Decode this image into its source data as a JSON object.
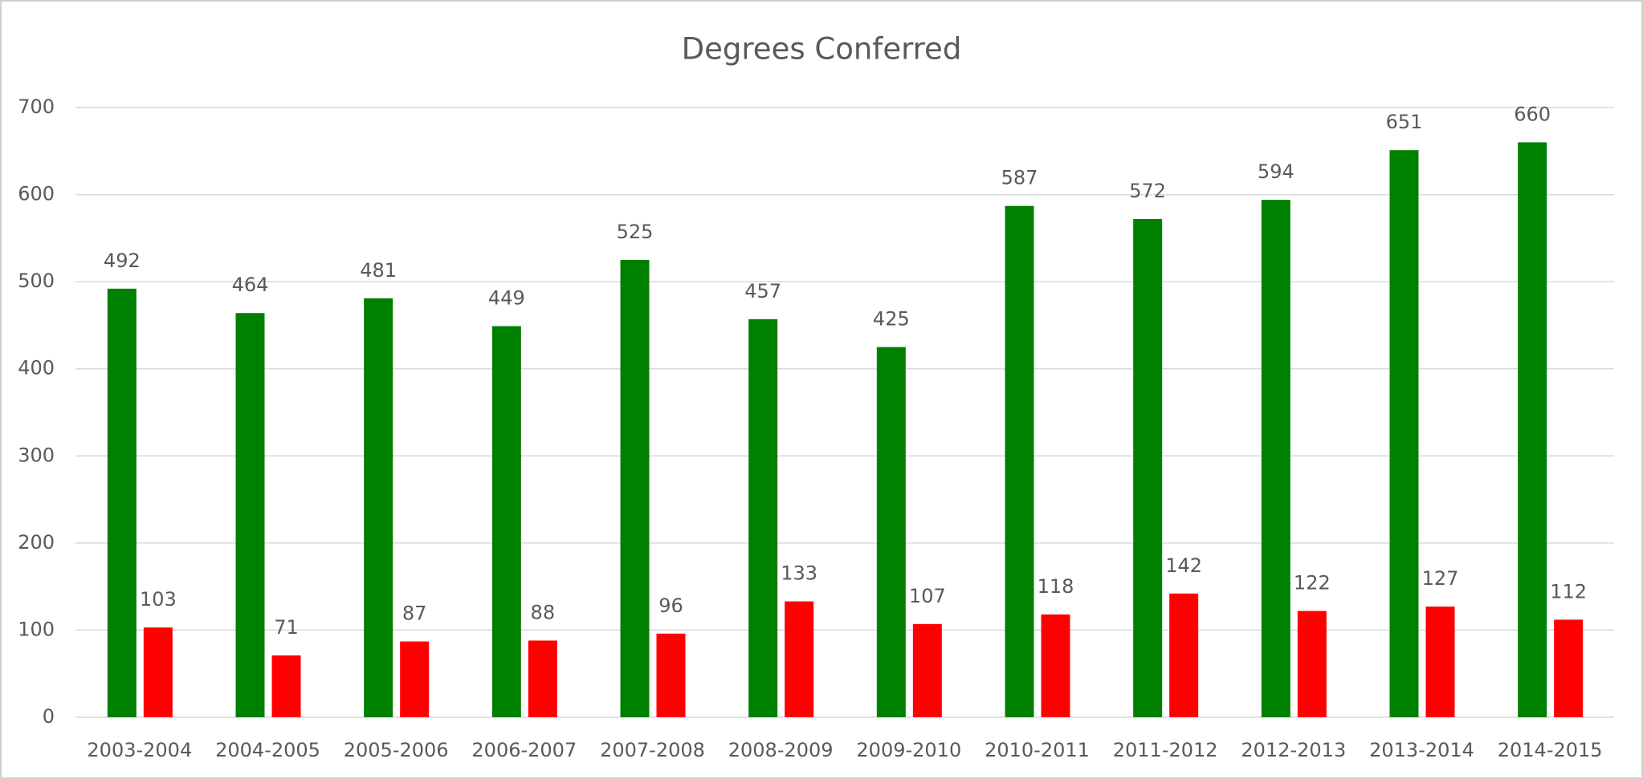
{
  "chart_data": {
    "type": "bar",
    "title": "Degrees Conferred",
    "categories": [
      "2003-2004",
      "2004-2005",
      "2005-2006",
      "2006-2007",
      "2007-2008",
      "2008-2009",
      "2009-2010",
      "2010-2011",
      "2011-2012",
      "2012-2013",
      "2013-2014",
      "2014-2015"
    ],
    "series": [
      {
        "color": "#008000",
        "values": [
          492,
          464,
          481,
          449,
          525,
          457,
          425,
          587,
          572,
          594,
          651,
          660
        ]
      },
      {
        "color": "#ff0000",
        "values": [
          103,
          71,
          87,
          88,
          96,
          133,
          107,
          118,
          142,
          122,
          127,
          112
        ]
      }
    ],
    "ylim": [
      0,
      700
    ],
    "yticks": [
      0,
      100,
      200,
      300,
      400,
      500,
      600,
      700
    ],
    "grid": true
  }
}
